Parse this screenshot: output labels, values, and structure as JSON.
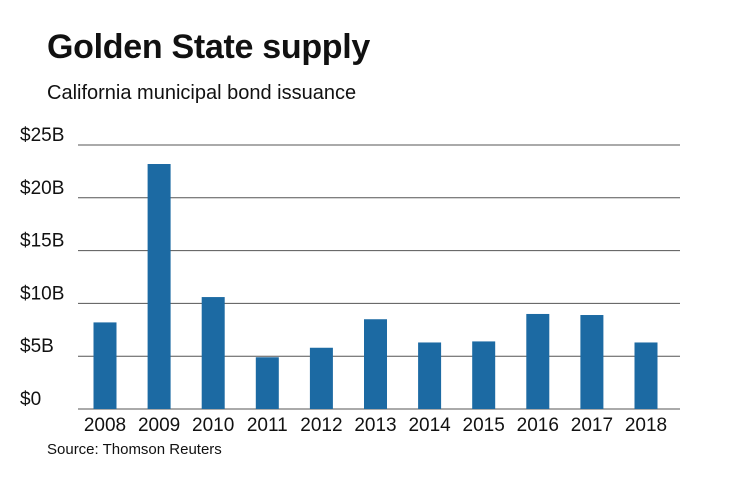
{
  "chart_data": {
    "type": "bar",
    "title": "Golden State supply",
    "subtitle": "California municipal bond issuance",
    "source": "Source: Thomson Reuters",
    "categories": [
      "2008",
      "2009",
      "2010",
      "2011",
      "2012",
      "2013",
      "2014",
      "2015",
      "2016",
      "2017",
      "2018"
    ],
    "values": [
      8.2,
      23.2,
      10.6,
      4.9,
      5.8,
      8.5,
      6.3,
      6.4,
      9.0,
      8.9,
      6.3
    ],
    "unit": "billion USD",
    "ylim": [
      0,
      25
    ],
    "yticks": [
      0,
      5,
      10,
      15,
      20,
      25
    ],
    "ytick_labels": [
      "$0",
      "$5B",
      "$10B",
      "$15B",
      "$20B",
      "$25B"
    ],
    "xlabel": "",
    "ylabel": "",
    "grid": true,
    "bar_color": "#1c6aa3",
    "grid_color": "#555555"
  }
}
